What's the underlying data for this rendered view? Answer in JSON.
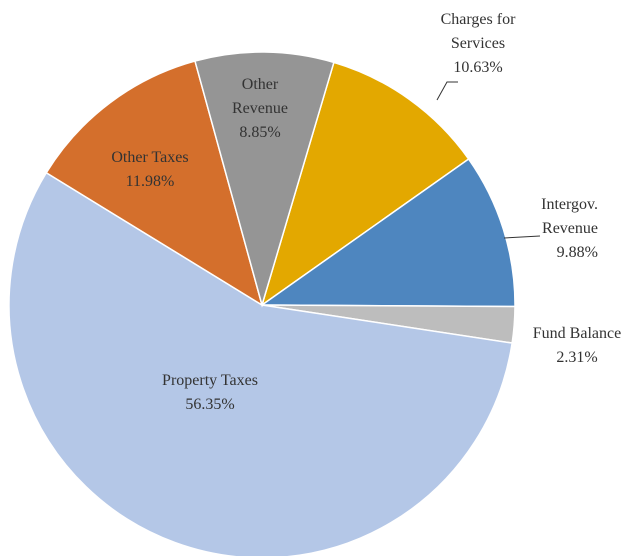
{
  "chart_data": {
    "type": "pie",
    "categories": [
      "Charges for Services",
      "Intergov. Revenue",
      "Fund Balance",
      "Property Taxes",
      "Other Taxes",
      "Other Revenue"
    ],
    "values": [
      10.63,
      9.88,
      2.31,
      56.35,
      11.98,
      8.85
    ],
    "value_labels": [
      "10.63%",
      "9.88%",
      "2.31%",
      "56.35%",
      "11.98%",
      "8.85%"
    ],
    "colors": [
      "#e3a800",
      "#4e86bf",
      "#bdbdbd",
      "#b4c7e7",
      "#d46f2c",
      "#959595"
    ]
  }
}
